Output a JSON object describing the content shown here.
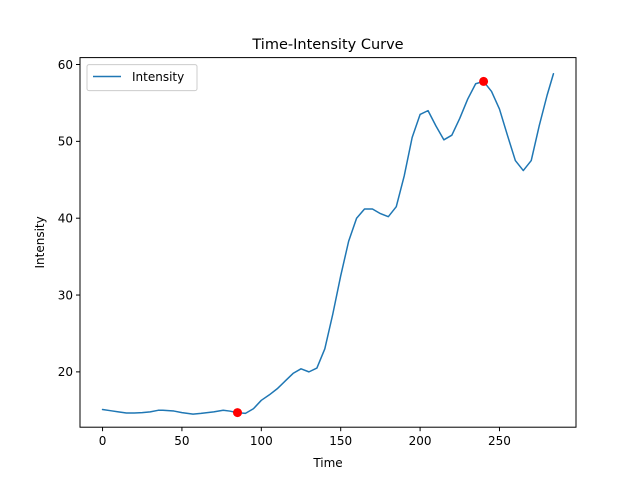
{
  "chart_data": {
    "type": "line",
    "title": "Time-Intensity Curve",
    "xlabel": "Time",
    "ylabel": "Intensity",
    "xlim": [
      -14.2,
      298.2
    ],
    "ylim": [
      12.8,
      60.9
    ],
    "xticks": [
      0,
      50,
      100,
      150,
      200,
      250
    ],
    "yticks": [
      20,
      30,
      40,
      50,
      60
    ],
    "grid": false,
    "legend": {
      "placement": "top-left",
      "entries": [
        "Intensity"
      ]
    },
    "series": [
      {
        "name": "Intensity",
        "color": "#1f77b4",
        "x": [
          0,
          5,
          10,
          15,
          20,
          25,
          30,
          35,
          38,
          45,
          50,
          57,
          62,
          70,
          76,
          80,
          85,
          90,
          95,
          100,
          105,
          110,
          115,
          120,
          125,
          130,
          135,
          140,
          145,
          150,
          155,
          160,
          165,
          170,
          175,
          180,
          185,
          190,
          195,
          200,
          205,
          210,
          215,
          220,
          225,
          230,
          235,
          240,
          245,
          250,
          255,
          260,
          265,
          270,
          275,
          280,
          284
        ],
        "y": [
          15.1,
          14.95,
          14.8,
          14.65,
          14.65,
          14.7,
          14.8,
          15.0,
          15.0,
          14.9,
          14.7,
          14.5,
          14.6,
          14.8,
          15.0,
          14.9,
          14.7,
          14.6,
          15.2,
          16.3,
          17.0,
          17.8,
          18.8,
          19.8,
          20.4,
          20.0,
          20.5,
          23.0,
          27.5,
          32.5,
          37.0,
          40.0,
          41.2,
          41.2,
          40.6,
          40.2,
          41.5,
          45.5,
          50.5,
          53.5,
          54.0,
          52.0,
          50.2,
          50.8,
          53.0,
          55.5,
          57.5,
          57.8,
          56.5,
          54.2,
          50.8,
          47.5,
          46.2,
          47.5,
          52.0,
          56.0,
          58.8
        ]
      }
    ],
    "highlight_points": {
      "color": "#ff0000",
      "x": [
        85,
        240
      ],
      "y": [
        14.7,
        57.8
      ]
    }
  }
}
